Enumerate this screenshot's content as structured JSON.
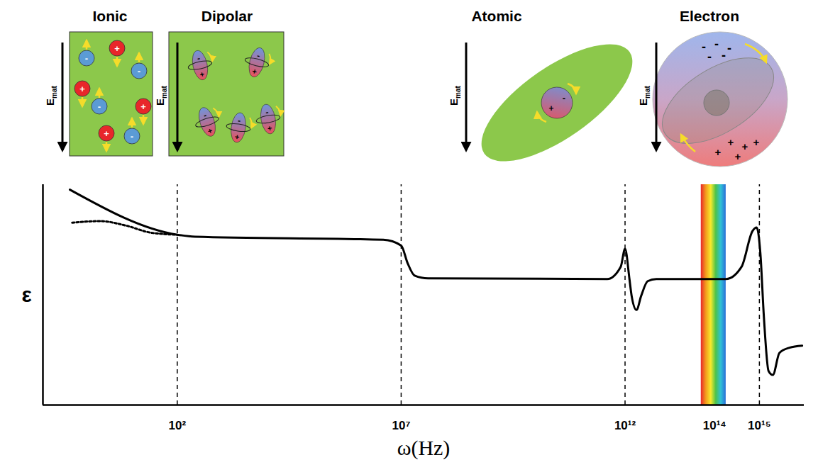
{
  "chart_data": {
    "type": "line",
    "x_label": "ω(Hz)",
    "y_label": "ε",
    "log": "x",
    "grid": false,
    "tick_labels": "x",
    "xlim": [
      0.1,
      1e+16
    ],
    "xticks": [
      {
        "value": 100,
        "label": "10²"
      },
      {
        "value": 10000000.0,
        "label": "10⁷"
      },
      {
        "value": 1000000000000.0,
        "label": "10¹²"
      },
      {
        "value": 100000000000000.0,
        "label": "10¹⁴"
      },
      {
        "value": 1000000000000000.0,
        "label": "10¹⁵"
      }
    ],
    "ylim": [
      0,
      11
    ],
    "yticks": [],
    "dashed_lines": [
      100,
      10000000.0,
      1000000000000.0,
      1000000000000000.0
    ],
    "visible_band": [
      50000000000000.0,
      180000000000000.0
    ],
    "series": [
      {
        "color": "#000000",
        "line_style": "solid",
        "x": [
          0.4,
          100,
          250,
          4000000.0,
          10000000.0,
          14000000.0,
          20000000.0,
          40000000.0,
          400000000000.0,
          800000000000.0,
          1000000000000.0,
          1260000000000.0,
          1400000000000.0,
          1800000000000.0,
          2300000000000.0,
          3200000000000.0,
          5000000000000.0,
          180000000000000.0,
          400000000000000.0,
          700000000000000.0,
          870000000000000.0,
          1050000000000000.0,
          1260000000000000.0,
          1600000000000000.0,
          2000000000000000.0,
          2800000000000000.0,
          4700000000000000.0,
          9000000000000000.0
        ],
        "values": [
          10.75,
          8.5,
          8.4,
          8.25,
          7.96,
          7.07,
          6.46,
          6.32,
          6.29,
          6.9,
          7.8,
          6.25,
          5.46,
          4.75,
          5.46,
          6.18,
          6.29,
          6.29,
          6.9,
          8.68,
          8.86,
          7.6,
          4.4,
          1.7,
          1.5,
          2.6,
          2.86,
          2.96
        ]
      },
      {
        "color": "#000000",
        "line_style": "dotted",
        "x": [
          0.45,
          1.9,
          7,
          26,
          100
        ],
        "values": [
          9.1,
          9.18,
          8.96,
          8.6,
          8.5
        ]
      }
    ]
  },
  "illustrations": {
    "panels": [
      {
        "title": "Ionic"
      },
      {
        "title": "Dipolar"
      },
      {
        "title": "Atomic"
      },
      {
        "title": "Electron"
      }
    ],
    "field_label": {
      "symbol": "E",
      "subscript": "mat"
    },
    "charge_signs": {
      "positive": "+",
      "negative": "-"
    }
  }
}
